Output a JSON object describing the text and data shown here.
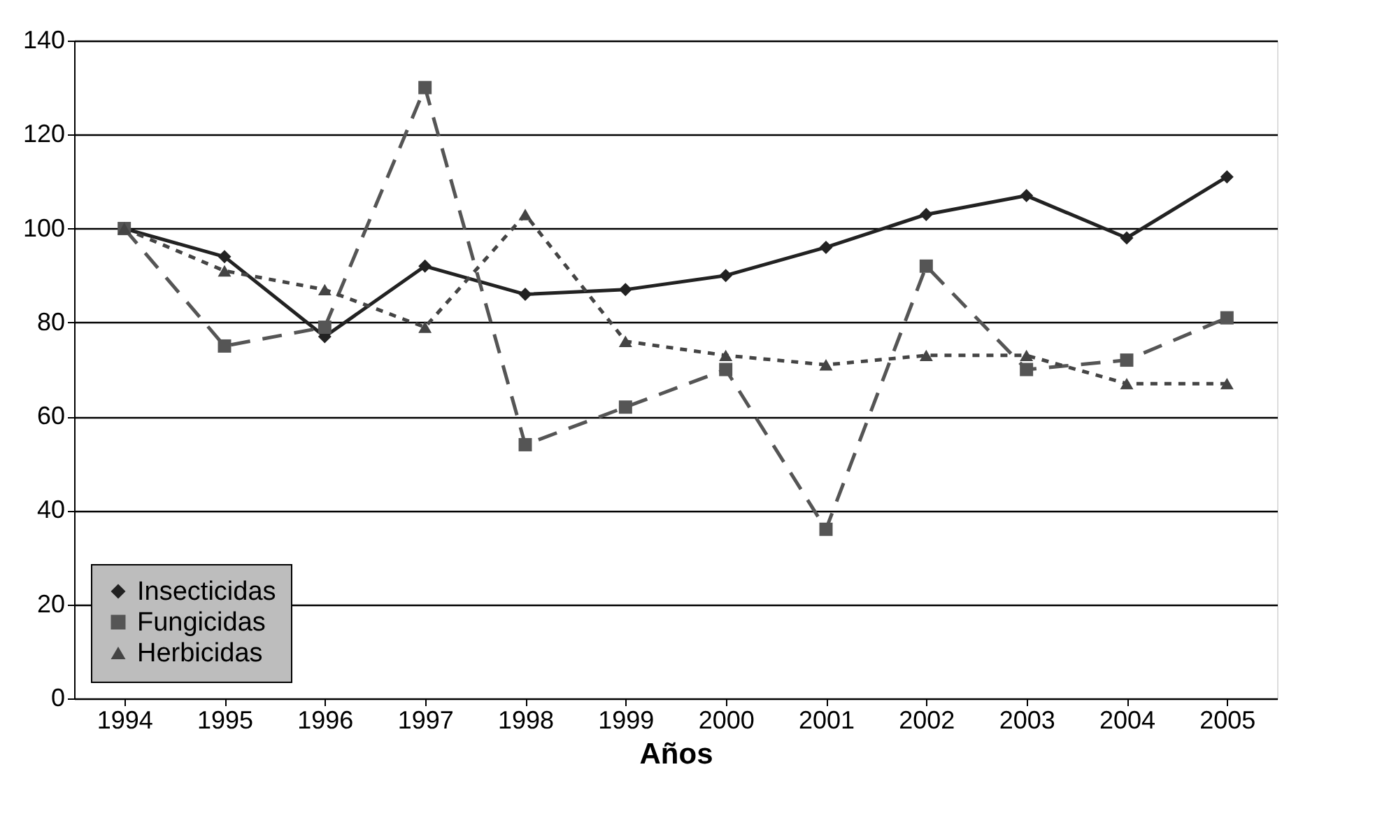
{
  "chart_data": {
    "type": "line",
    "xlabel": "Años",
    "categories": [
      "1994",
      "1995",
      "1996",
      "1997",
      "1998",
      "1999",
      "2000",
      "2001",
      "2002",
      "2003",
      "2004",
      "2005"
    ],
    "series": [
      {
        "name": "Insecticidas",
        "color": "#222222",
        "marker": "diamond",
        "line_style": "solid",
        "values": [
          100,
          94,
          77,
          92,
          86,
          87,
          90,
          96,
          103,
          107,
          98,
          111
        ]
      },
      {
        "name": "Fungicidas",
        "color": "#555555",
        "marker": "square",
        "line_style": "dashed",
        "values": [
          100,
          75,
          79,
          130,
          54,
          62,
          70,
          36,
          92,
          70,
          72,
          81
        ]
      },
      {
        "name": "Herbicidas",
        "color": "#444444",
        "marker": "triangle",
        "line_style": "dotted",
        "values": [
          100,
          91,
          87,
          79,
          103,
          76,
          73,
          71,
          73,
          73,
          67,
          67
        ]
      }
    ],
    "ylim": [
      0,
      140
    ],
    "yticks": [
      0,
      20,
      40,
      60,
      80,
      100,
      120,
      140
    ],
    "grid": "y",
    "legend": "bottom left"
  }
}
